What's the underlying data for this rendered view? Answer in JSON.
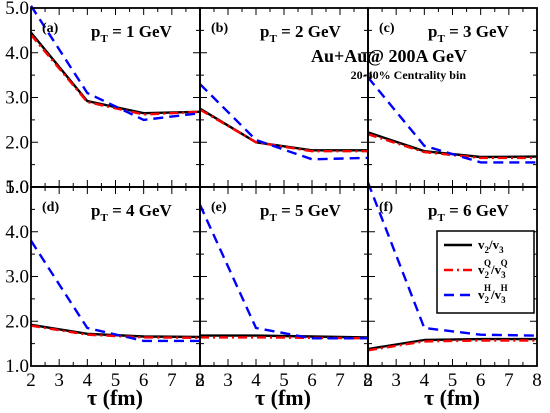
{
  "chart_data": {
    "type": "line",
    "xlabel": "τ (fm)",
    "xlim": [
      2,
      8
    ],
    "ylim": [
      1.0,
      5.0
    ],
    "xticks": [
      "2",
      "3",
      "4",
      "5",
      "6",
      "7",
      "8"
    ],
    "yticks_left": [
      "1.0",
      "2.0",
      "3.0",
      "4.0",
      "5.0"
    ],
    "yticks_lower_left": [
      "1.0",
      "2.0",
      "3.0",
      "4.0",
      "5.0"
    ],
    "annotation_main": "Au+Au@  200A GeV",
    "annotation_sub": "20-40% Centrality bin",
    "legend": {
      "position": "lower-right",
      "entries": [
        {
          "id": "total",
          "base": "v",
          "sub1": "2",
          "slash": "/v",
          "sub2": "3",
          "sup1": "",
          "sup2": ""
        },
        {
          "id": "quark",
          "base": "v",
          "sub1": "2",
          "slash": "/v",
          "sub2": "3",
          "sup1": "Q",
          "sup2": "Q"
        },
        {
          "id": "hadron",
          "base": "v",
          "sub1": "2",
          "slash": "/v",
          "sub2": "3",
          "sup1": "H",
          "sup2": "H"
        }
      ]
    },
    "series_styles": [
      {
        "id": "total",
        "color": "#000000",
        "dash": ""
      },
      {
        "id": "quark",
        "color": "#ff0000",
        "dash": "9,4,2,4"
      },
      {
        "id": "hadron",
        "color": "#0000ff",
        "dash": "10,6"
      }
    ],
    "panels": [
      {
        "label": "(a)",
        "pt_prefix": "p",
        "pt_sub": "T",
        "pt_value": " = 1 GeV",
        "x": [
          2,
          4,
          6,
          8
        ],
        "series": [
          {
            "id": "total",
            "values": [
              4.45,
              2.92,
              2.65,
              2.68
            ]
          },
          {
            "id": "quark",
            "values": [
              4.4,
              2.9,
              2.62,
              2.68
            ]
          },
          {
            "id": "hadron",
            "values": [
              5.05,
              3.1,
              2.5,
              2.65
            ]
          }
        ]
      },
      {
        "label": "(b)",
        "pt_prefix": "p",
        "pt_sub": "T",
        "pt_value": " = 2 GeV",
        "x": [
          2,
          4,
          6,
          8
        ],
        "series": [
          {
            "id": "total",
            "values": [
              2.75,
              2.0,
              1.82,
              1.82
            ]
          },
          {
            "id": "quark",
            "values": [
              2.73,
              2.0,
              1.8,
              1.8
            ]
          },
          {
            "id": "hadron",
            "values": [
              3.3,
              2.05,
              1.62,
              1.65
            ]
          }
        ]
      },
      {
        "label": "(c)",
        "pt_prefix": "p",
        "pt_sub": "T",
        "pt_value": " = 3 GeV",
        "x": [
          2,
          4,
          6,
          8
        ],
        "series": [
          {
            "id": "total",
            "values": [
              2.22,
              1.8,
              1.67,
              1.68
            ]
          },
          {
            "id": "quark",
            "values": [
              2.18,
              1.78,
              1.65,
              1.65
            ]
          },
          {
            "id": "hadron",
            "values": [
              3.45,
              1.92,
              1.55,
              1.55
            ]
          }
        ]
      },
      {
        "label": "(d)",
        "pt_prefix": "p",
        "pt_sub": "T",
        "pt_value": " = 4 GeV",
        "x": [
          2,
          4,
          6,
          8
        ],
        "series": [
          {
            "id": "total",
            "values": [
              1.92,
              1.72,
              1.66,
              1.65
            ]
          },
          {
            "id": "quark",
            "values": [
              1.9,
              1.7,
              1.64,
              1.63
            ]
          },
          {
            "id": "hadron",
            "values": [
              3.8,
              1.85,
              1.56,
              1.56
            ]
          }
        ]
      },
      {
        "label": "(e)",
        "pt_prefix": "p",
        "pt_sub": "T",
        "pt_value": " = 5 GeV",
        "x": [
          2,
          4,
          6,
          8
        ],
        "series": [
          {
            "id": "total",
            "values": [
              1.68,
              1.68,
              1.66,
              1.64
            ]
          },
          {
            "id": "quark",
            "values": [
              1.64,
              1.64,
              1.63,
              1.62
            ]
          },
          {
            "id": "hadron",
            "values": [
              4.6,
              1.85,
              1.62,
              1.62
            ]
          }
        ]
      },
      {
        "label": "(f)",
        "pt_prefix": "p",
        "pt_sub": "T",
        "pt_value": " = 6 GeV",
        "x": [
          2,
          4,
          6,
          8
        ],
        "series": [
          {
            "id": "total",
            "values": [
              1.38,
              1.58,
              1.6,
              1.6
            ]
          },
          {
            "id": "quark",
            "values": [
              1.35,
              1.55,
              1.57,
              1.57
            ]
          },
          {
            "id": "hadron",
            "values": [
              5.1,
              1.85,
              1.7,
              1.68
            ]
          }
        ]
      }
    ]
  }
}
